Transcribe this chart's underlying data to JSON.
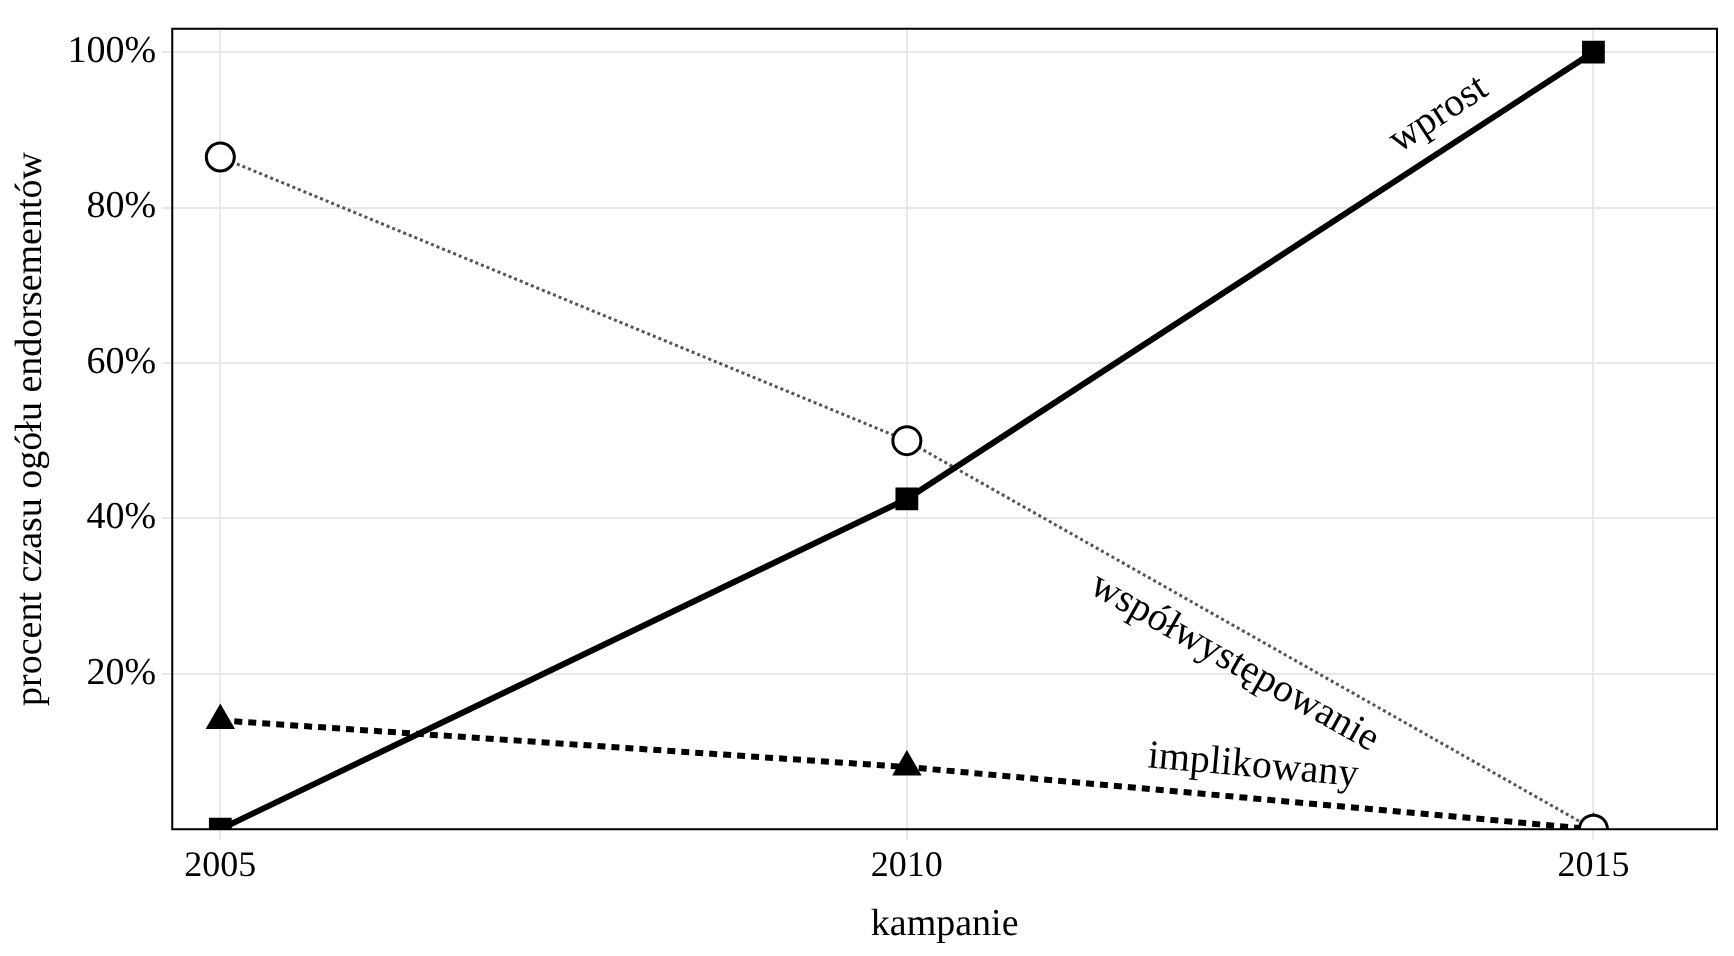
{
  "chart_data": {
    "type": "line",
    "xlabel": "kampanie",
    "ylabel": "procent czasu ogółu endorsementów",
    "x": [
      2005,
      2010,
      2015
    ],
    "series": [
      {
        "name": "wprost",
        "color": "#000000",
        "values": [
          0,
          42.5,
          100
        ],
        "marker": "square",
        "line_style": "solid"
      },
      {
        "name": "współwystępowanie",
        "color": "#555555",
        "values": [
          86.5,
          50,
          0
        ],
        "marker": "circle",
        "line_style": "dotted"
      },
      {
        "name": "implikowany",
        "color": "#000000",
        "values": [
          14,
          8,
          0
        ],
        "marker": "triangle",
        "line_style": "dashed"
      }
    ],
    "xlim": [
      2004.65,
      2015.9
    ],
    "xticks": [
      2005,
      2010,
      2015
    ],
    "ylim": [
      0,
      103
    ],
    "yticks": [
      {
        "value": 20,
        "label": "20%"
      },
      {
        "value": 40,
        "label": "40%"
      },
      {
        "value": 60,
        "label": "60%"
      },
      {
        "value": 80,
        "label": "80%"
      },
      {
        "value": 100,
        "label": "100%"
      }
    ],
    "grid": true,
    "legend": false
  }
}
